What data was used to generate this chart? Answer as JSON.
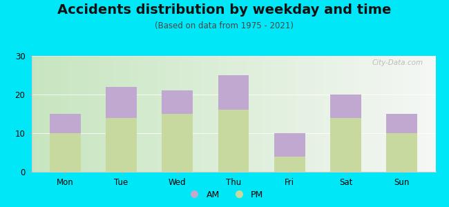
{
  "title": "Accidents distribution by weekday and time",
  "subtitle": "(Based on data from 1975 - 2021)",
  "categories": [
    "Mon",
    "Tue",
    "Wed",
    "Thu",
    "Fri",
    "Sat",
    "Sun"
  ],
  "pm_values": [
    10,
    14,
    15,
    16,
    4,
    14,
    10
  ],
  "am_values": [
    5,
    8,
    6,
    9,
    6,
    6,
    5
  ],
  "pm_color": "#c8d9a0",
  "am_color": "#c0a8d0",
  "background_outer": "#00e8f8",
  "background_inner_left": "#c8e8c0",
  "background_inner_right": "#f5f5f0",
  "ylim": [
    0,
    30
  ],
  "yticks": [
    0,
    10,
    20,
    30
  ],
  "bar_width": 0.55,
  "legend_labels": [
    "AM",
    "PM"
  ],
  "watermark": "City-Data.com",
  "title_fontsize": 14,
  "subtitle_fontsize": 8.5,
  "tick_fontsize": 8.5
}
